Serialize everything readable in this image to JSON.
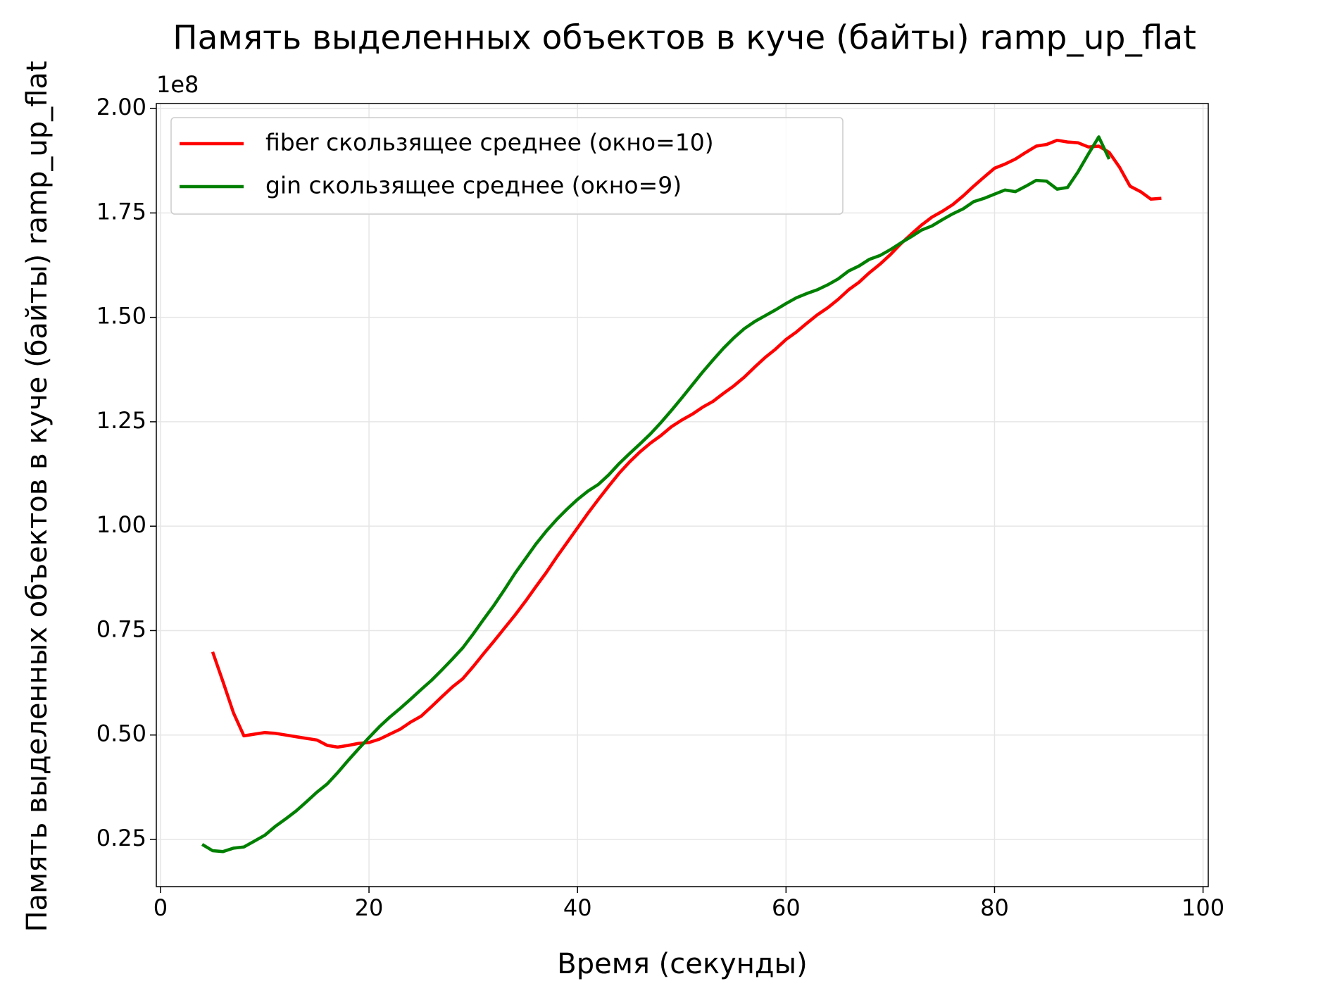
{
  "chart_data": {
    "type": "line",
    "title": "Память выделенных объектов в куче (байты) ramp_up_flat",
    "xlabel": "Время (секунды)",
    "ylabel": "Память выделенных объектов в куче (байты) ramp_up_flat",
    "y_offset_text": "1e8",
    "xlim": [
      -0.4,
      100.5
    ],
    "ylim": [
      0.137,
      2.012
    ],
    "xticks": [
      0,
      20,
      40,
      60,
      80,
      100
    ],
    "yticks": [
      0.25,
      {
        "value": 0.5,
        "label": "0.50"
      },
      0.75,
      {
        "value": 1.0,
        "label": "1.00"
      },
      1.25,
      {
        "value": 1.5,
        "label": "1.50"
      },
      1.75,
      {
        "value": 2.0,
        "label": "2.00"
      }
    ],
    "grid": true,
    "legend": "upper left",
    "series": [
      {
        "name": "fiber скользящее среднее (окно=10)",
        "color": "#ff0000",
        "x": [
          5,
          6,
          7,
          8,
          9,
          10,
          11,
          12,
          13,
          14,
          15,
          16,
          17,
          18,
          19,
          20,
          21,
          22,
          23,
          24,
          25,
          26,
          27,
          28,
          29,
          30,
          31,
          32,
          33,
          34,
          35,
          36,
          37,
          38,
          39,
          40,
          41,
          42,
          43,
          44,
          45,
          46,
          47,
          48,
          49,
          50,
          51,
          52,
          53,
          54,
          55,
          56,
          57,
          58,
          59,
          60,
          61,
          62,
          63,
          64,
          65,
          66,
          67,
          68,
          69,
          70,
          71,
          72,
          73,
          74,
          75,
          76,
          77,
          78,
          79,
          80,
          81,
          82,
          83,
          84,
          85,
          86,
          87,
          88,
          89,
          90,
          91,
          92,
          93,
          94,
          95,
          96
        ],
        "values": [
          0.699,
          0.627,
          0.553,
          0.498,
          0.502,
          0.506,
          0.504,
          0.5,
          0.496,
          0.492,
          0.488,
          0.475,
          0.471,
          0.475,
          0.48,
          0.482,
          0.49,
          0.502,
          0.514,
          0.531,
          0.545,
          0.568,
          0.592,
          0.615,
          0.635,
          0.664,
          0.695,
          0.725,
          0.756,
          0.787,
          0.82,
          0.855,
          0.889,
          0.926,
          0.961,
          0.996,
          1.031,
          1.064,
          1.096,
          1.127,
          1.154,
          1.178,
          1.199,
          1.217,
          1.238,
          1.254,
          1.268,
          1.285,
          1.299,
          1.318,
          1.336,
          1.357,
          1.381,
          1.404,
          1.424,
          1.447,
          1.465,
          1.486,
          1.506,
          1.523,
          1.543,
          1.566,
          1.584,
          1.607,
          1.627,
          1.65,
          1.676,
          1.699,
          1.721,
          1.74,
          1.754,
          1.77,
          1.791,
          1.814,
          1.836,
          1.857,
          1.867,
          1.879,
          1.895,
          1.91,
          1.914,
          1.924,
          1.92,
          1.918,
          1.908,
          1.91,
          1.895,
          1.859,
          1.814,
          1.801,
          1.783,
          1.785
        ]
      },
      {
        "name": "gin скользящее среднее (окно=9)",
        "color": "#008000",
        "x": [
          4,
          5,
          6,
          7,
          8,
          9,
          10,
          11,
          12,
          13,
          14,
          15,
          16,
          17,
          18,
          19,
          20,
          21,
          22,
          23,
          24,
          25,
          26,
          27,
          28,
          29,
          30,
          31,
          32,
          33,
          34,
          35,
          36,
          37,
          38,
          39,
          40,
          41,
          42,
          43,
          44,
          45,
          46,
          47,
          48,
          49,
          50,
          51,
          52,
          53,
          54,
          55,
          56,
          57,
          58,
          59,
          60,
          61,
          62,
          63,
          64,
          65,
          66,
          67,
          68,
          69,
          70,
          71,
          72,
          73,
          74,
          75,
          76,
          77,
          78,
          79,
          80,
          81,
          82,
          83,
          84,
          85,
          86,
          87,
          88,
          89,
          90,
          91
        ],
        "values": [
          0.238,
          0.223,
          0.221,
          0.229,
          0.232,
          0.246,
          0.26,
          0.281,
          0.299,
          0.318,
          0.34,
          0.363,
          0.383,
          0.41,
          0.439,
          0.467,
          0.494,
          0.52,
          0.543,
          0.564,
          0.586,
          0.609,
          0.631,
          0.656,
          0.682,
          0.709,
          0.742,
          0.777,
          0.811,
          0.848,
          0.887,
          0.922,
          0.957,
          0.988,
          1.016,
          1.041,
          1.064,
          1.084,
          1.1,
          1.123,
          1.15,
          1.174,
          1.197,
          1.221,
          1.248,
          1.277,
          1.307,
          1.338,
          1.369,
          1.398,
          1.426,
          1.451,
          1.473,
          1.49,
          1.504,
          1.518,
          1.533,
          1.547,
          1.557,
          1.566,
          1.578,
          1.592,
          1.611,
          1.623,
          1.639,
          1.648,
          1.662,
          1.678,
          1.693,
          1.709,
          1.719,
          1.734,
          1.748,
          1.76,
          1.777,
          1.785,
          1.795,
          1.805,
          1.801,
          1.814,
          1.828,
          1.826,
          1.807,
          1.811,
          1.848,
          1.891,
          1.932,
          1.879
        ]
      }
    ]
  }
}
